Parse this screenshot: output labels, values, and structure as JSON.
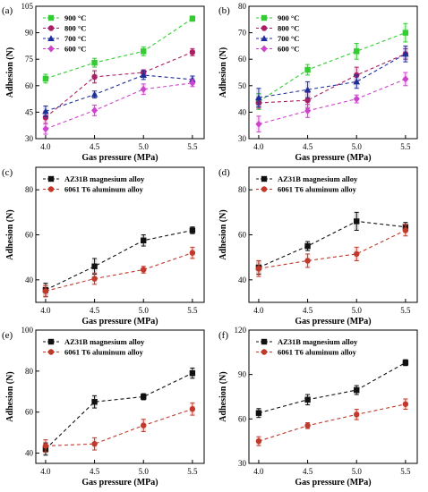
{
  "chart_data": [
    {
      "panel_label": "(a)",
      "type": "line",
      "xlabel": "Gas pressure (MPa)",
      "ylabel": "Adhesion (N)",
      "x": [
        4.0,
        4.5,
        5.0,
        5.5
      ],
      "xticks": [
        "4.0",
        "4.5",
        "5.0",
        "5.5"
      ],
      "ylim": [
        30,
        105
      ],
      "yticks": [
        "30",
        "45",
        "60",
        "75",
        "90",
        "105"
      ],
      "legend": "top-left",
      "series": [
        {
          "name": "900 °C",
          "color": "#33cc33",
          "marker": "square",
          "values": [
            64,
            73,
            79.5,
            98
          ],
          "err": [
            2.5,
            2.5,
            2.5,
            1.5
          ]
        },
        {
          "name": "800 °C",
          "color": "#aa1f66",
          "marker": "circle",
          "values": [
            42,
            65,
            67.5,
            79
          ],
          "err": [
            3.5,
            3.5,
            1.5,
            2
          ]
        },
        {
          "name": "700 °C",
          "color": "#1f2f99",
          "marker": "triangle",
          "values": [
            45.5,
            55,
            66,
            63.5
          ],
          "err": [
            3,
            2,
            2.5,
            2
          ]
        },
        {
          "name": "600 °C",
          "color": "#cc44cc",
          "marker": "diamond",
          "values": [
            35.5,
            46,
            58,
            61.5
          ],
          "err": [
            3,
            3,
            3,
            2
          ]
        }
      ]
    },
    {
      "panel_label": "(b)",
      "type": "line",
      "xlabel": "Gas pressure (MPa)",
      "ylabel": "Adhesion (N)",
      "x": [
        4.0,
        4.5,
        5.0,
        5.5
      ],
      "xticks": [
        "4.0",
        "4.5",
        "5.0",
        "5.5"
      ],
      "ylim": [
        30,
        80
      ],
      "yticks": [
        "30",
        "40",
        "50",
        "60",
        "70",
        "80"
      ],
      "legend": "top-left",
      "series": [
        {
          "name": "900 °C",
          "color": "#33cc33",
          "marker": "square",
          "values": [
            44,
            56,
            63,
            70
          ],
          "err": [
            3,
            2,
            3,
            3.5
          ]
        },
        {
          "name": "800 °C",
          "color": "#aa1f66",
          "marker": "circle",
          "values": [
            43.5,
            44.5,
            54,
            62
          ],
          "err": [
            2,
            3,
            3,
            2
          ]
        },
        {
          "name": "700 °C",
          "color": "#1f2f99",
          "marker": "triangle",
          "values": [
            45.5,
            48.5,
            51.5,
            62
          ],
          "err": [
            3.5,
            3,
            2.5,
            3
          ]
        },
        {
          "name": "600 °C",
          "color": "#cc44cc",
          "marker": "diamond",
          "values": [
            35.5,
            40.5,
            45,
            52.5
          ],
          "err": [
            3,
            2.5,
            1.5,
            2.5
          ]
        }
      ]
    },
    {
      "panel_label": "(c)",
      "type": "line",
      "xlabel": "Gas pressure (MPa)",
      "ylabel": "Adhesion (N)",
      "x": [
        4.0,
        4.5,
        5.0,
        5.5
      ],
      "xticks": [
        "4.0",
        "4.5",
        "5.0",
        "5.5"
      ],
      "ylim": [
        30,
        90
      ],
      "yticks": [
        "40",
        "60",
        "80"
      ],
      "legend": "top-left",
      "series": [
        {
          "name": "AZ31B magnesium alloy",
          "color": "#111111",
          "marker": "square",
          "values": [
            35.5,
            46,
            57.5,
            62
          ],
          "err": [
            3,
            3.5,
            2.5,
            1.5
          ]
        },
        {
          "name": "6061 T6 aluminum alloy",
          "color": "#c0392b",
          "marker": "circle",
          "values": [
            35,
            40.5,
            44.5,
            52
          ],
          "err": [
            2.5,
            2.5,
            1.5,
            2.5
          ]
        }
      ]
    },
    {
      "panel_label": "(d)",
      "type": "line",
      "xlabel": "Gas pressure (MPa)",
      "ylabel": "Adhesion (N)",
      "x": [
        4.0,
        4.5,
        5.0,
        5.5
      ],
      "xticks": [
        "4.0",
        "4.5",
        "5.0",
        "5.5"
      ],
      "ylim": [
        30,
        90
      ],
      "yticks": [
        "40",
        "60",
        "80"
      ],
      "legend": "top-left",
      "series": [
        {
          "name": "AZ31B magnesium alloy",
          "color": "#111111",
          "marker": "square",
          "values": [
            45.5,
            55,
            66,
            63.5
          ],
          "err": [
            3,
            2,
            4,
            2
          ]
        },
        {
          "name": "6061 T6 aluminum alloy",
          "color": "#c0392b",
          "marker": "circle",
          "values": [
            45,
            48.5,
            51.5,
            62
          ],
          "err": [
            3.5,
            3,
            3,
            2.5
          ]
        }
      ]
    },
    {
      "panel_label": "(e)",
      "type": "line",
      "xlabel": "Gas pressure (MPa)",
      "ylabel": "Adhesion (N)",
      "x": [
        4.0,
        4.5,
        5.0,
        5.5
      ],
      "xticks": [
        "4.0",
        "4.5",
        "5.0",
        "5.5"
      ],
      "ylim": [
        35,
        100
      ],
      "yticks": [
        "40",
        "60",
        "80",
        "100"
      ],
      "legend": "top-left",
      "series": [
        {
          "name": "AZ31B magnesium alloy",
          "color": "#111111",
          "marker": "square",
          "values": [
            42,
            65,
            67.5,
            79
          ],
          "err": [
            3,
            3,
            1.5,
            2.5
          ]
        },
        {
          "name": "6061 T6 aluminum alloy",
          "color": "#c0392b",
          "marker": "circle",
          "values": [
            43.5,
            44.5,
            53.5,
            61.5
          ],
          "err": [
            3,
            3,
            3,
            3
          ]
        }
      ]
    },
    {
      "panel_label": "(f)",
      "type": "line",
      "xlabel": "Gas pressure (MPa)",
      "ylabel": "Adhesion (N)",
      "x": [
        4.0,
        4.5,
        5.0,
        5.5
      ],
      "xticks": [
        "4.0",
        "4.5",
        "5.0",
        "5.5"
      ],
      "ylim": [
        30,
        120
      ],
      "yticks": [
        "30",
        "60",
        "90",
        "120"
      ],
      "legend": "top-left",
      "series": [
        {
          "name": "AZ31B magnesium alloy",
          "color": "#111111",
          "marker": "square",
          "values": [
            64,
            73,
            79.5,
            98
          ],
          "err": [
            3,
            3.5,
            3,
            2
          ]
        },
        {
          "name": "6061 T6 aluminum alloy",
          "color": "#c0392b",
          "marker": "circle",
          "values": [
            45,
            55.5,
            63,
            70
          ],
          "err": [
            3,
            2,
            3.5,
            3.5
          ]
        }
      ]
    }
  ]
}
